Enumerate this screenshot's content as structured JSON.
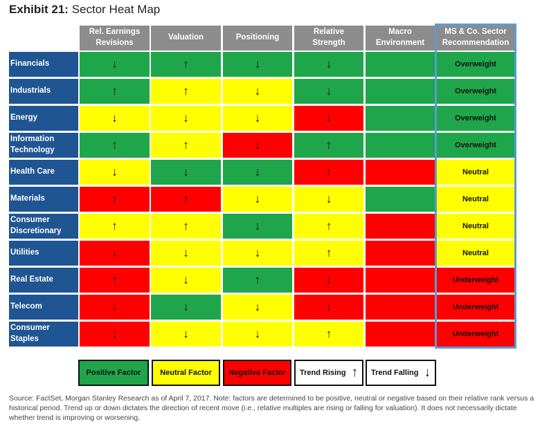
{
  "title_prefix": "Exhibit 21:",
  "title_text": "Sector Heat Map",
  "colors": {
    "positive": "#1fa64a",
    "neutral": "#ffff00",
    "negative": "#ff0000",
    "header": "#8c8c8c",
    "row_label": "#1f5592",
    "highlight": "#5b9bd5"
  },
  "chart_data": {
    "type": "table",
    "columns": [
      "Rel. Earnings Revisions",
      "Valuation",
      "Positioning",
      "Relative Strength",
      "Macro Environment",
      "MS & Co. Sector Recommendation"
    ],
    "rows": [
      {
        "sector": "Financials",
        "factors": [
          [
            "positive",
            "down"
          ],
          [
            "positive",
            "up"
          ],
          [
            "positive",
            "down"
          ],
          [
            "positive",
            "down"
          ],
          [
            "positive",
            ""
          ]
        ],
        "recommendation": "Overweight",
        "rec_color": "positive"
      },
      {
        "sector": "Industrials",
        "factors": [
          [
            "positive",
            "up"
          ],
          [
            "neutral",
            "up"
          ],
          [
            "neutral",
            "down"
          ],
          [
            "positive",
            "down"
          ],
          [
            "positive",
            ""
          ]
        ],
        "recommendation": "Overweight",
        "rec_color": "positive"
      },
      {
        "sector": "Energy",
        "factors": [
          [
            "neutral",
            "down"
          ],
          [
            "neutral",
            "down"
          ],
          [
            "neutral",
            "down"
          ],
          [
            "negative",
            "down"
          ],
          [
            "positive",
            ""
          ]
        ],
        "recommendation": "Overweight",
        "rec_color": "positive"
      },
      {
        "sector": "Information Technology",
        "factors": [
          [
            "positive",
            "up"
          ],
          [
            "neutral",
            "up"
          ],
          [
            "negative",
            "down"
          ],
          [
            "positive",
            "up"
          ],
          [
            "positive",
            ""
          ]
        ],
        "recommendation": "Overweight",
        "rec_color": "positive"
      },
      {
        "sector": "Health Care",
        "factors": [
          [
            "neutral",
            "down"
          ],
          [
            "positive",
            "down"
          ],
          [
            "positive",
            "down"
          ],
          [
            "negative",
            "up"
          ],
          [
            "negative",
            ""
          ]
        ],
        "recommendation": "Neutral",
        "rec_color": "neutral"
      },
      {
        "sector": "Materials",
        "factors": [
          [
            "negative",
            "up"
          ],
          [
            "negative",
            "up"
          ],
          [
            "neutral",
            "down"
          ],
          [
            "neutral",
            "down"
          ],
          [
            "positive",
            ""
          ]
        ],
        "recommendation": "Neutral",
        "rec_color": "neutral"
      },
      {
        "sector": "Consumer Discretionary",
        "factors": [
          [
            "neutral",
            "up"
          ],
          [
            "neutral",
            "up"
          ],
          [
            "positive",
            "down"
          ],
          [
            "neutral",
            "up"
          ],
          [
            "negative",
            ""
          ]
        ],
        "recommendation": "Neutral",
        "rec_color": "neutral"
      },
      {
        "sector": "Utilities",
        "factors": [
          [
            "negative",
            "down"
          ],
          [
            "neutral",
            "down"
          ],
          [
            "neutral",
            "down"
          ],
          [
            "neutral",
            "up"
          ],
          [
            "negative",
            ""
          ]
        ],
        "recommendation": "Neutral",
        "rec_color": "neutral"
      },
      {
        "sector": "Real Estate",
        "factors": [
          [
            "negative",
            "up"
          ],
          [
            "neutral",
            "down"
          ],
          [
            "positive",
            "up"
          ],
          [
            "negative",
            "down"
          ],
          [
            "negative",
            ""
          ]
        ],
        "recommendation": "Underweight",
        "rec_color": "negative"
      },
      {
        "sector": "Telecom",
        "factors": [
          [
            "negative",
            "down"
          ],
          [
            "positive",
            "down"
          ],
          [
            "neutral",
            "down"
          ],
          [
            "negative",
            "down"
          ],
          [
            "negative",
            ""
          ]
        ],
        "recommendation": "Underweight",
        "rec_color": "negative"
      },
      {
        "sector": "Consumer Staples",
        "factors": [
          [
            "negative",
            "down"
          ],
          [
            "neutral",
            "down"
          ],
          [
            "neutral",
            "down"
          ],
          [
            "neutral",
            "up"
          ],
          [
            "negative",
            ""
          ]
        ],
        "recommendation": "Underweight",
        "rec_color": "negative"
      }
    ]
  },
  "legend": {
    "positive": "Positive Factor",
    "neutral": "Neutral Factor",
    "negative": "Negative Factor",
    "rising": "Trend Rising",
    "falling": "Trend Falling",
    "up_arrow": "↑",
    "down_arrow": "↓"
  },
  "source": "Source: FactSet, Morgan Stanley Research as of April 7, 2017. Note: factors are determined to be positive, neutral or negative based on their relative rank versus a historical period. Trend up or down dictates the direction of recent move (i.e., relative multiples are rising or falling for valuation). It does not necessarily dictate whether trend is improving or worsening."
}
